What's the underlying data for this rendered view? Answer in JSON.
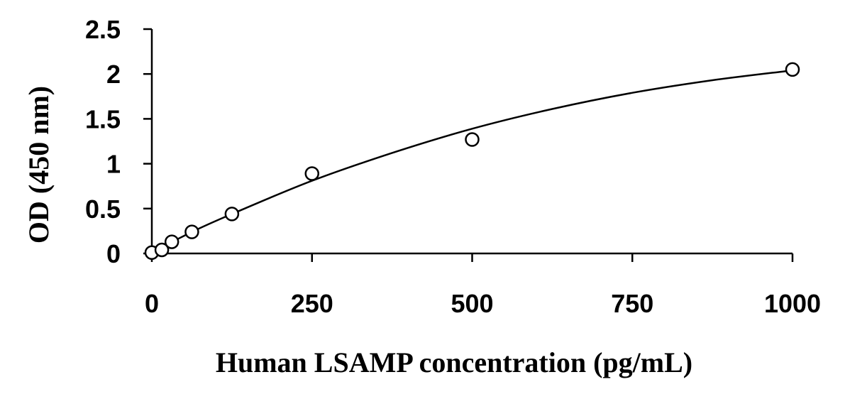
{
  "chart_data": {
    "type": "scatter",
    "title": "",
    "xlabel": "Human LSAMP concentration (pg/mL)",
    "ylabel": "OD (450 nm)",
    "xlim": [
      0,
      1000
    ],
    "ylim": [
      0,
      2.5
    ],
    "x_ticks": [
      0,
      250,
      500,
      750,
      1000
    ],
    "x_tick_labels": [
      "0",
      "250",
      "500",
      "750",
      "1000"
    ],
    "y_ticks": [
      0,
      0.5,
      1,
      1.5,
      2,
      2.5
    ],
    "y_tick_labels": [
      "0",
      "0.5",
      "1",
      "1.5",
      "2",
      "2.5"
    ],
    "grid": false,
    "legend": "none",
    "series": [
      {
        "marker": "open-circle",
        "x": [
          0,
          15.6,
          31.2,
          62.5,
          125,
          250,
          500,
          1000
        ],
        "y": [
          0.01,
          0.04,
          0.13,
          0.24,
          0.44,
          0.89,
          1.27,
          2.05
        ]
      }
    ],
    "fit_curve": {
      "type": "smooth-fit",
      "x": [
        0,
        62.5,
        125,
        250,
        375,
        500,
        625,
        750,
        875,
        1000
      ],
      "y": [
        0.01,
        0.24,
        0.44,
        0.81,
        1.12,
        1.39,
        1.61,
        1.79,
        1.93,
        2.04
      ]
    },
    "colors": {
      "axis": "#000000",
      "marker_stroke": "#000000",
      "marker_fill": "#ffffff",
      "curve": "#000000"
    }
  }
}
